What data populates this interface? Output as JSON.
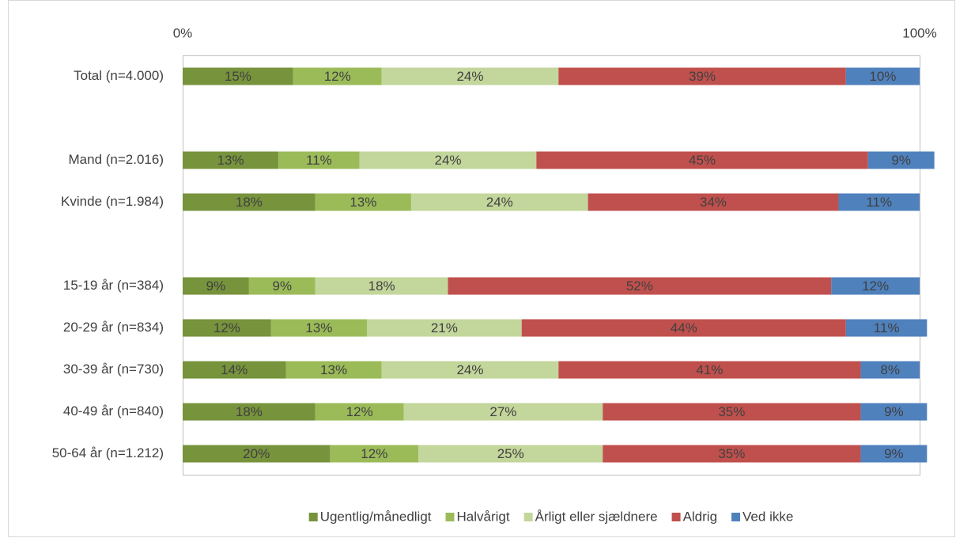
{
  "chart_data": {
    "type": "stacked-bar-horizontal",
    "categories": [
      "Total (n=4.000)",
      null,
      "Mand (n=2.016)",
      "Kvinde (n=1.984)",
      null,
      "15-19 år (n=384)",
      "20-29 år (n=834)",
      "30-39 år (n=730)",
      "40-49 år (n=840)",
      "50-64 år (n=1.212)"
    ],
    "xlim": [
      0,
      100
    ],
    "xticks": [
      {
        "value": 0,
        "label": "0%"
      },
      {
        "value": 100,
        "label": "100%"
      }
    ],
    "legend": "bottom",
    "series": [
      {
        "name": "Ugentlig/månedligt",
        "color": "#77933c",
        "values": [
          15,
          null,
          13,
          18,
          null,
          9,
          12,
          14,
          18,
          20
        ],
        "value_labels": [
          "15%",
          null,
          "13%",
          "18%",
          null,
          "9%",
          "12%",
          "14%",
          "18%",
          "20%"
        ]
      },
      {
        "name": "Halvårigt",
        "color": "#9bbb59",
        "values": [
          12,
          null,
          11,
          13,
          null,
          9,
          13,
          13,
          12,
          12
        ],
        "value_labels": [
          "12%",
          null,
          "11%",
          "13%",
          null,
          "9%",
          "13%",
          "13%",
          "12%",
          "12%"
        ]
      },
      {
        "name": "Årligt eller sjældnere",
        "color": "#c3d69b",
        "values": [
          24,
          null,
          24,
          24,
          null,
          18,
          21,
          24,
          27,
          25
        ],
        "value_labels": [
          "24%",
          null,
          "24%",
          "24%",
          null,
          "18%",
          "21%",
          "24%",
          "27%",
          "25%"
        ]
      },
      {
        "name": "Aldrig",
        "color": "#c0504d",
        "values": [
          39,
          null,
          45,
          34,
          null,
          52,
          44,
          41,
          35,
          35
        ],
        "value_labels": [
          "39%",
          null,
          "45%",
          "34%",
          null,
          "52%",
          "44%",
          "41%",
          "35%",
          "35%"
        ]
      },
      {
        "name": "Ved ikke",
        "color": "#4f81bd",
        "values": [
          10,
          null,
          9,
          11,
          null,
          12,
          11,
          8,
          9,
          9
        ],
        "value_labels": [
          "10%",
          null,
          "9%",
          "11%",
          null,
          "12%",
          "11%",
          "8%",
          "9%",
          "9%"
        ]
      }
    ]
  }
}
